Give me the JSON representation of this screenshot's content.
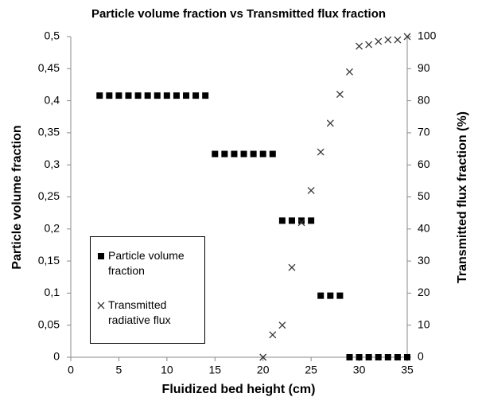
{
  "chart_data": {
    "type": "scatter",
    "title": "Particle volume fraction vs Transmitted flux fraction",
    "x_label": "Fluidized bed height (cm)",
    "y_label": "Particle volume fraction",
    "y2_label": "Transmitted flux fraction (%)",
    "xlim": [
      0,
      35
    ],
    "xticks": [
      0,
      5,
      10,
      15,
      20,
      25,
      30,
      35
    ],
    "ylim": [
      0,
      0.5
    ],
    "yticks": [
      0,
      {
        "value": 0.05,
        "label": "0,05"
      },
      {
        "value": 0.1,
        "label": "0,1"
      },
      {
        "value": 0.15,
        "label": "0,15"
      },
      {
        "value": 0.2,
        "label": "0,2"
      },
      {
        "value": 0.25,
        "label": "0,25"
      },
      {
        "value": 0.3,
        "label": "0,3"
      },
      {
        "value": 0.35,
        "label": "0,35"
      },
      {
        "value": 0.4,
        "label": "0,4"
      },
      {
        "value": 0.45,
        "label": "0,45"
      },
      {
        "value": 0.5,
        "label": "0,5"
      }
    ],
    "y2lim": [
      0,
      100
    ],
    "y2ticks": [
      0,
      10,
      20,
      30,
      40,
      50,
      60,
      70,
      80,
      90,
      100
    ],
    "legend": "lower left",
    "series": [
      {
        "name": "Particle volume fraction",
        "marker": "square",
        "color": "#000000",
        "axis": "y",
        "x": [
          3,
          4,
          5,
          6,
          7,
          8,
          9,
          10,
          11,
          12,
          13,
          14,
          15,
          16,
          17,
          18,
          19,
          20,
          21,
          22,
          23,
          24,
          25,
          26,
          27,
          28,
          29,
          30,
          31,
          32,
          33,
          34,
          35
        ],
        "values": [
          0.408,
          0.408,
          0.408,
          0.408,
          0.408,
          0.408,
          0.408,
          0.408,
          0.408,
          0.408,
          0.408,
          0.408,
          0.317,
          0.317,
          0.317,
          0.317,
          0.317,
          0.317,
          0.317,
          0.213,
          0.213,
          0.213,
          0.213,
          0.096,
          0.096,
          0.096,
          0,
          0,
          0,
          0,
          0,
          0,
          0
        ]
      },
      {
        "name": "Transmitted radiative flux",
        "marker": "cross",
        "color": "#333333",
        "axis": "y2",
        "x": [
          20,
          21,
          22,
          23,
          24,
          25,
          26,
          27,
          28,
          29,
          30,
          31,
          32,
          33,
          34,
          35
        ],
        "values": [
          0,
          7,
          10,
          28,
          42,
          52,
          64,
          73,
          82,
          89,
          97,
          97.5,
          98.5,
          99,
          99,
          100
        ]
      }
    ]
  }
}
